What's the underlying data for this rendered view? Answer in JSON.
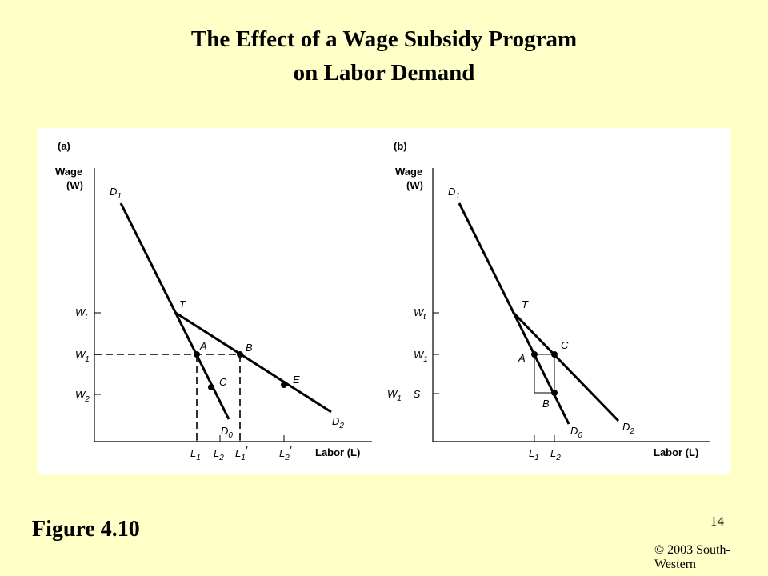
{
  "title": {
    "line1": "The Effect of a Wage Subsidy Program",
    "line2": "on Labor Demand"
  },
  "figure_label": "Figure 4.10",
  "page_number": "14",
  "copyright": "© 2003 South-Western",
  "panel_a": {
    "tag": "(a)",
    "y_axis_label": "Wage",
    "y_axis_symbol": "(W)",
    "x_axis_label": "Labor (L)",
    "y_ticks": [
      "Wt",
      "W1",
      "W2"
    ],
    "x_ticks": [
      "L1",
      "L2",
      "L1′",
      "L2′"
    ],
    "curves": [
      "D1",
      "D0",
      "D2"
    ],
    "points": [
      "T",
      "A",
      "B",
      "C",
      "E"
    ]
  },
  "panel_b": {
    "tag": "(b)",
    "y_axis_label": "Wage",
    "y_axis_symbol": "(W)",
    "x_axis_label": "Labor (L)",
    "y_ticks": [
      "Wt",
      "W1",
      "W1 − S"
    ],
    "x_ticks": [
      "L1",
      "L2"
    ],
    "curves": [
      "D1",
      "D0",
      "D2"
    ],
    "points": [
      "T",
      "A",
      "C",
      "B"
    ]
  },
  "colors": {
    "background": "#ffffc8",
    "panel": "#ffffff",
    "ink": "#000000"
  }
}
